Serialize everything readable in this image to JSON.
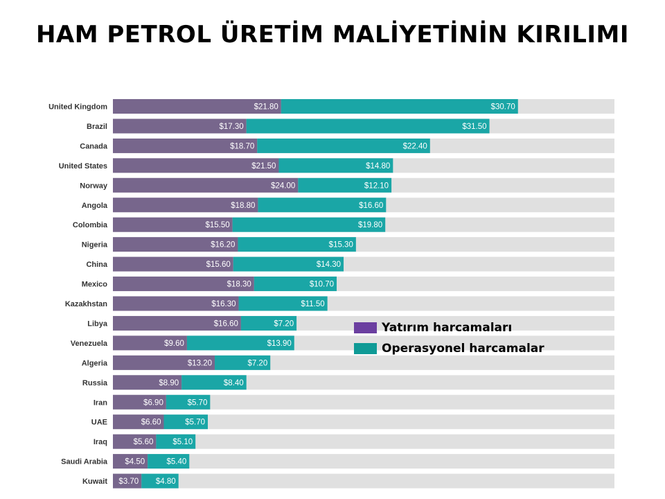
{
  "title": "HAM PETROL ÜRETİM MALİYETİNİN KIRILIMI",
  "chart_data": {
    "type": "bar",
    "orientation": "horizontal",
    "stacked": true,
    "categories": [
      "United Kingdom",
      "Brazil",
      "Canada",
      "United States",
      "Norway",
      "Angola",
      "Colombia",
      "Nigeria",
      "China",
      "Mexico",
      "Kazakhstan",
      "Libya",
      "Venezuela",
      "Algeria",
      "Russia",
      "Iran",
      "UAE",
      "Iraq",
      "Saudi Arabia",
      "Kuwait"
    ],
    "series": [
      {
        "name": "Yatırım harcamaları",
        "color": "#77668c",
        "values": [
          21.8,
          17.3,
          18.7,
          21.5,
          24.0,
          18.8,
          15.5,
          16.2,
          15.6,
          18.3,
          16.3,
          16.6,
          9.6,
          13.2,
          8.9,
          6.9,
          6.6,
          5.6,
          4.5,
          3.7
        ],
        "labels": [
          "$21.80",
          "$17.30",
          "$18.70",
          "$21.50",
          "$24.00",
          "$18.80",
          "$15.50",
          "$16.20",
          "$15.60",
          "$18.30",
          "$16.30",
          "$16.60",
          "$9.60",
          "$13.20",
          "$8.90",
          "$6.90",
          "$6.60",
          "$5.60",
          "$4.50",
          "$3.70"
        ]
      },
      {
        "name": "Operasyonel harcamalar",
        "color": "#1aa6a6",
        "values": [
          30.7,
          31.5,
          22.4,
          14.8,
          12.1,
          16.6,
          19.8,
          15.3,
          14.3,
          10.7,
          11.5,
          7.2,
          13.9,
          7.2,
          8.4,
          5.7,
          5.7,
          5.1,
          5.4,
          4.8
        ],
        "labels": [
          "$30.70",
          "$31.50",
          "$22.40",
          "$14.80",
          "$12.10",
          "$16.60",
          "$19.80",
          "$15.30",
          "$14.30",
          "$10.70",
          "$11.50",
          "$7.20",
          "$13.90",
          "$7.20",
          "$8.40",
          "$5.70",
          "$5.70",
          "$5.10",
          "$5.40",
          "$4.80"
        ]
      }
    ],
    "xlim": [
      0,
      65
    ],
    "track_color": "#e0e0e0",
    "legend": {
      "position": "inside-right",
      "items": [
        {
          "label": "Yatırım harcamaları",
          "color": "#6b3fa0"
        },
        {
          "label": "Operasyonel harcamalar",
          "color": "#0f9a96"
        }
      ]
    }
  }
}
